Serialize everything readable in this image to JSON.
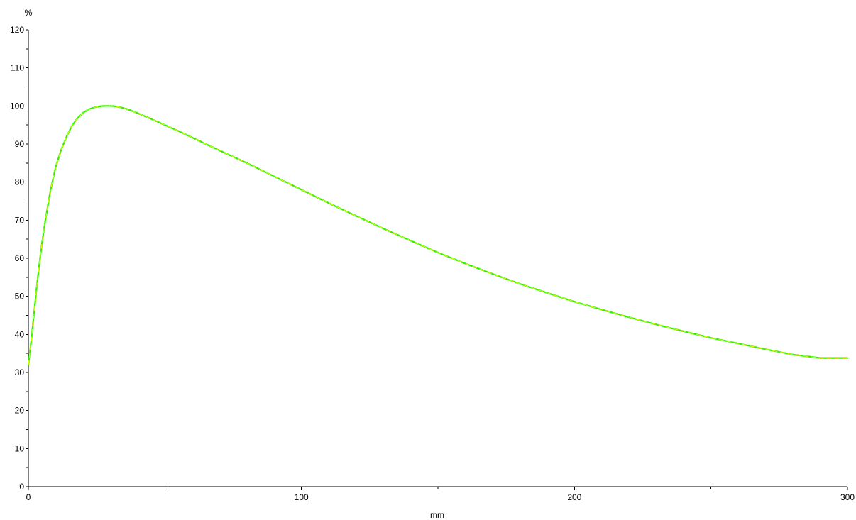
{
  "chart_data": {
    "type": "line",
    "title": "",
    "xlabel": "mm",
    "ylabel": "%",
    "xlim": [
      0,
      300
    ],
    "ylim": [
      0,
      120
    ],
    "x_ticks": [
      0,
      100,
      200,
      300
    ],
    "x_minor_ticks": [
      50,
      150,
      250
    ],
    "y_ticks": [
      0,
      10,
      20,
      30,
      40,
      50,
      60,
      70,
      80,
      90,
      100,
      110,
      120
    ],
    "y_minor_step": 5,
    "grid": false,
    "legend": "none",
    "colors": {
      "series_green": "#33ee00",
      "series_yellow": "#eeff00",
      "axis": "#000000",
      "background": "#ffffff"
    },
    "series": [
      {
        "x": [
          0,
          1,
          2,
          3,
          4,
          5,
          6,
          8,
          10,
          12,
          14,
          16,
          18,
          20,
          22,
          24,
          26,
          28,
          30,
          32,
          34,
          36,
          38,
          40,
          45,
          50,
          55,
          60,
          70,
          80,
          90,
          100,
          110,
          120,
          130,
          140,
          150,
          160,
          170,
          180,
          190,
          200,
          210,
          220,
          230,
          240,
          250,
          260,
          270,
          280,
          290,
          300
        ],
        "y": [
          32.0,
          38.0,
          45.0,
          52.0,
          58.5,
          64.0,
          69.0,
          77.5,
          84.0,
          88.5,
          92.0,
          94.8,
          96.8,
          98.2,
          99.1,
          99.6,
          99.9,
          100.0,
          100.0,
          99.9,
          99.6,
          99.2,
          98.7,
          98.1,
          96.6,
          95.0,
          93.4,
          91.7,
          88.3,
          85.0,
          81.5,
          78.0,
          74.5,
          71.1,
          67.8,
          64.6,
          61.5,
          58.6,
          55.9,
          53.3,
          50.9,
          48.6,
          46.5,
          44.5,
          42.6,
          40.8,
          39.1,
          37.6,
          36.1,
          34.7,
          33.8,
          33.8
        ]
      }
    ]
  }
}
